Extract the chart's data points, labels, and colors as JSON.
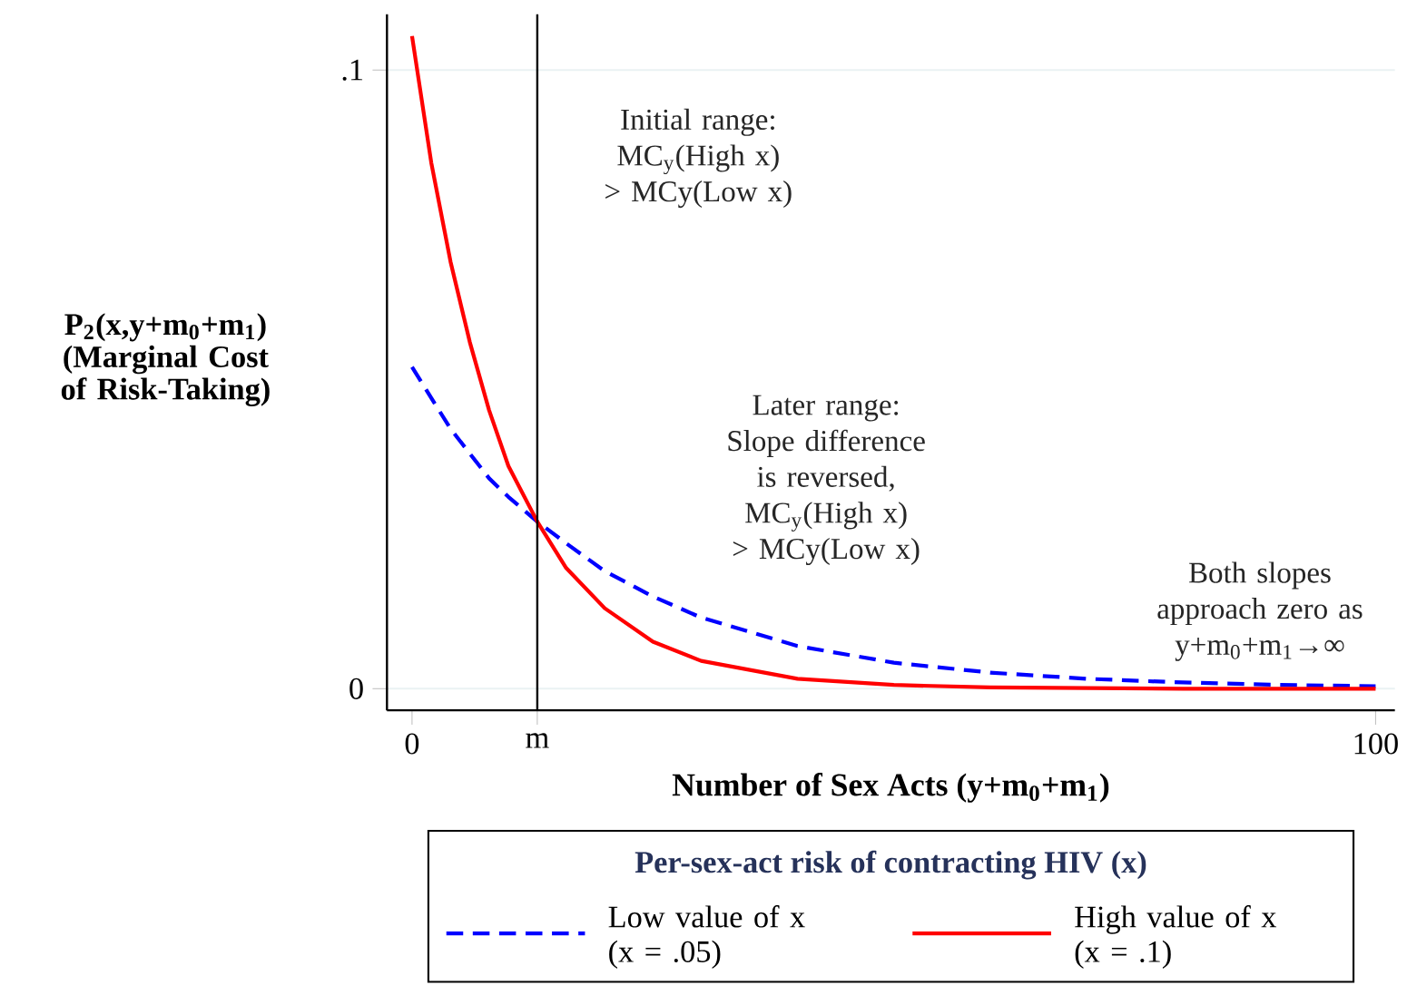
{
  "chart_data": {
    "type": "line",
    "ylabel": "P$_{2}$(x,y+m$_{0}$+m$_{1}$) (Marginal Cost of Risk-Taking)",
    "xlabel": "Number of Sex Acts (y+m$_{0}$+m$_{1}$)",
    "legend_title": "Per-sex-act risk of contracting HIV (x)",
    "x": [
      0,
      2,
      4,
      6,
      8,
      10,
      13,
      16,
      20,
      25,
      30,
      40,
      50,
      60,
      70,
      80,
      90,
      100
    ],
    "series": [
      {
        "name": "Low value of x (x = .05)",
        "color": "#0000ff",
        "line_style": "dashed",
        "values": [
          0.052,
          0.047,
          0.042,
          0.038,
          0.034,
          0.031,
          0.027,
          0.0235,
          0.019,
          0.0149,
          0.0115,
          0.0069,
          0.0042,
          0.0026,
          0.0016,
          0.001,
          0.0006,
          0.0004
        ]
      },
      {
        "name": "High value of x (x = .1)",
        "color": "#ff0000",
        "line_style": "solid",
        "values": [
          0.1055,
          0.085,
          0.069,
          0.056,
          0.045,
          0.036,
          0.027,
          0.0195,
          0.013,
          0.0076,
          0.0045,
          0.0016,
          0.0006,
          0.0002,
          0.0001,
          0.0,
          0.0,
          0.0
        ]
      }
    ],
    "xlim": [
      -2.6,
      102
    ],
    "ylim": [
      -0.0035,
      0.109
    ],
    "xticks": [
      0,
      {
        "value": 13,
        "label": "m"
      },
      100
    ],
    "yticks": [
      0,
      {
        "value": 0.1,
        "label": ".1"
      }
    ],
    "ref_lines": [
      {
        "axis": "x",
        "value": 13,
        "color": "#000000"
      }
    ],
    "annotations": [
      "Initial range: MC$_{y}$(High x) > MCy(Low x)",
      "Later range: Slope difference is reversed, MC$_{y}$(High x) > MCy(Low x)",
      "Both slopes approach zero as y+m$_{0}$+m$_{1}$→∞"
    ],
    "grid": "y",
    "legend": "bottom"
  }
}
